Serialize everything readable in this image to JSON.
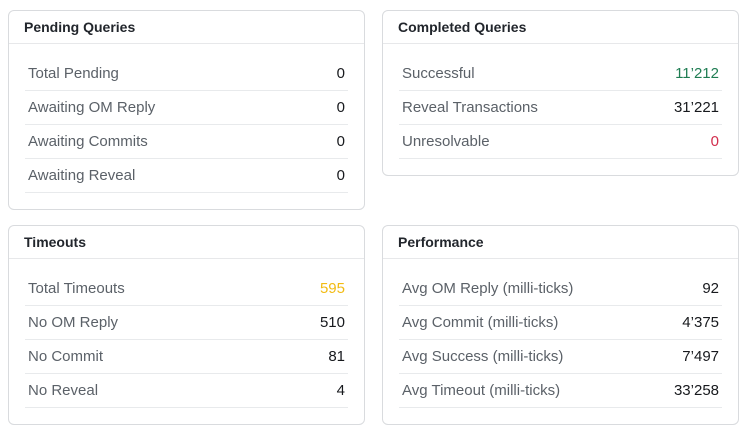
{
  "colors": {
    "success": "#1f7d53",
    "danger": "#d22e4d",
    "warning": "#f2bb13",
    "default": "#17191d"
  },
  "cards": [
    {
      "title": "Pending Queries",
      "rows": [
        {
          "label": "Total Pending",
          "value": "0"
        },
        {
          "label": "Awaiting OM Reply",
          "value": "0"
        },
        {
          "label": "Awaiting Commits",
          "value": "0"
        },
        {
          "label": "Awaiting Reveal",
          "value": "0"
        }
      ]
    },
    {
      "title": "Completed Queries",
      "rows": [
        {
          "label": "Successful",
          "value": "11’212",
          "color": "success"
        },
        {
          "label": "Reveal Transactions",
          "value": "31’221"
        },
        {
          "label": "Unresolvable",
          "value": "0",
          "color": "danger"
        }
      ]
    },
    {
      "title": "Timeouts",
      "rows": [
        {
          "label": "Total Timeouts",
          "value": "595",
          "color": "warning"
        },
        {
          "label": "No OM Reply",
          "value": "510"
        },
        {
          "label": "No Commit",
          "value": "81"
        },
        {
          "label": "No Reveal",
          "value": "4"
        }
      ]
    },
    {
      "title": "Performance",
      "rows": [
        {
          "label": "Avg OM Reply (milli-ticks)",
          "value": "92"
        },
        {
          "label": "Avg Commit (milli-ticks)",
          "value": "4’375"
        },
        {
          "label": "Avg Success (milli-ticks)",
          "value": "7’497"
        },
        {
          "label": "Avg Timeout (milli-ticks)",
          "value": "33’258"
        }
      ]
    }
  ]
}
